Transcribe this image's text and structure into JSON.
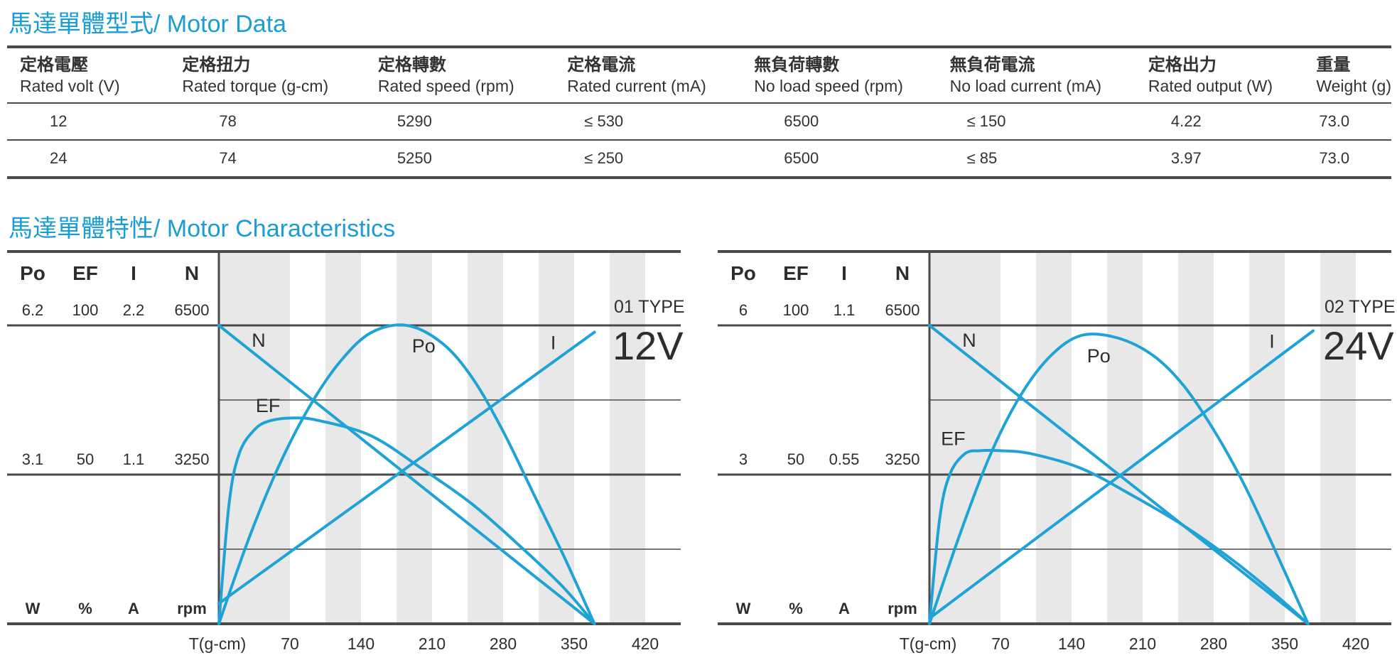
{
  "motor_data": {
    "title": "馬達單體型式/ Motor Data",
    "columns": [
      {
        "zh": "定格電壓",
        "en": "Rated volt (V)"
      },
      {
        "zh": "定格扭力",
        "en": "Rated torque (g-cm)"
      },
      {
        "zh": "定格轉數",
        "en": "Rated speed (rpm)"
      },
      {
        "zh": "定格電流",
        "en": "Rated current (mA)"
      },
      {
        "zh": "無負荷轉數",
        "en": "No load speed (rpm)"
      },
      {
        "zh": "無負荷電流",
        "en": "No load current (mA)"
      },
      {
        "zh": "定格出力",
        "en": "Rated output (W)"
      },
      {
        "zh": "重量",
        "en": "Weight (g)"
      }
    ],
    "rows": [
      [
        "12",
        "78",
        "5290",
        "≤ 530",
        "6500",
        "≤ 150",
        "4.22",
        "73.0"
      ],
      [
        "24",
        "74",
        "5250",
        "≤ 250",
        "6500",
        "≤ 85",
        "3.97",
        "73.0"
      ]
    ]
  },
  "characteristics": {
    "title": "馬達單體特性/ Motor Characteristics"
  },
  "colors": {
    "accent": "#1a9dd3",
    "curve": "#1fa3d6",
    "stripe": "#e9e8e8",
    "rule": "#4a4a4a"
  },
  "chart_data": [
    {
      "type": "line",
      "type_label": "01 TYPE",
      "voltage_label": "12V",
      "axis_header": [
        "Po",
        "EF",
        "I",
        "N"
      ],
      "axis_top": [
        "6.2",
        "100",
        "2.2",
        "6500"
      ],
      "axis_mid": [
        "3.1",
        "50",
        "1.1",
        "3250"
      ],
      "axis_units": [
        "W",
        "%",
        "A",
        "rpm"
      ],
      "x_label": "T(g-cm)",
      "x_ticks": [
        "70",
        "140",
        "210",
        "280",
        "350",
        "420"
      ],
      "xlim": [
        0,
        455
      ],
      "series": [
        {
          "name": "N",
          "x": [
            0,
            370
          ],
          "y": [
            6500,
            0
          ]
        },
        {
          "name": "I",
          "x": [
            0,
            370
          ],
          "y": [
            0.15,
            2.15
          ]
        },
        {
          "name": "Po",
          "x": [
            0,
            30,
            60,
            90,
            120,
            150,
            185,
            220,
            250,
            280,
            310,
            340,
            370
          ],
          "y": [
            0,
            1.8,
            3.32,
            4.54,
            5.46,
            6.05,
            6.2,
            5.83,
            5.1,
            4.0,
            2.7,
            1.4,
            0
          ]
        },
        {
          "name": "EF",
          "x": [
            0,
            10,
            20,
            35,
            50,
            75,
            100,
            150,
            200,
            250,
            300,
            340,
            370
          ],
          "y": [
            0,
            40,
            57,
            65,
            68,
            69,
            68,
            63,
            52,
            40,
            25,
            12,
            0
          ]
        }
      ]
    },
    {
      "type": "line",
      "type_label": "02 TYPE",
      "voltage_label": "24V",
      "axis_header": [
        "Po",
        "EF",
        "I",
        "N"
      ],
      "axis_top": [
        "6",
        "100",
        "1.1",
        "6500"
      ],
      "axis_mid": [
        "3",
        "50",
        "0.55",
        "3250"
      ],
      "axis_units": [
        "W",
        "%",
        "A",
        "rpm"
      ],
      "x_label": "T(g-cm)",
      "x_ticks": [
        "70",
        "140",
        "210",
        "280",
        "350",
        "420"
      ],
      "xlim": [
        0,
        455
      ],
      "series": [
        {
          "name": "N",
          "x": [
            0,
            373
          ],
          "y": [
            6500,
            0
          ]
        },
        {
          "name": "I",
          "x": [
            0,
            378
          ],
          "y": [
            0.02,
            1.08
          ]
        },
        {
          "name": "Po",
          "x": [
            0,
            30,
            60,
            90,
            120,
            150,
            185,
            220,
            250,
            280,
            310,
            340,
            373
          ],
          "y": [
            0,
            1.8,
            3.4,
            4.6,
            5.4,
            5.8,
            5.75,
            5.4,
            4.8,
            3.9,
            2.8,
            1.5,
            0
          ]
        },
        {
          "name": "EF",
          "x": [
            0,
            10,
            20,
            35,
            50,
            70,
            100,
            150,
            200,
            250,
            300,
            340,
            373
          ],
          "y": [
            0,
            35,
            50,
            57,
            58,
            58,
            57,
            52,
            43,
            33,
            21,
            10,
            0
          ]
        }
      ]
    }
  ]
}
